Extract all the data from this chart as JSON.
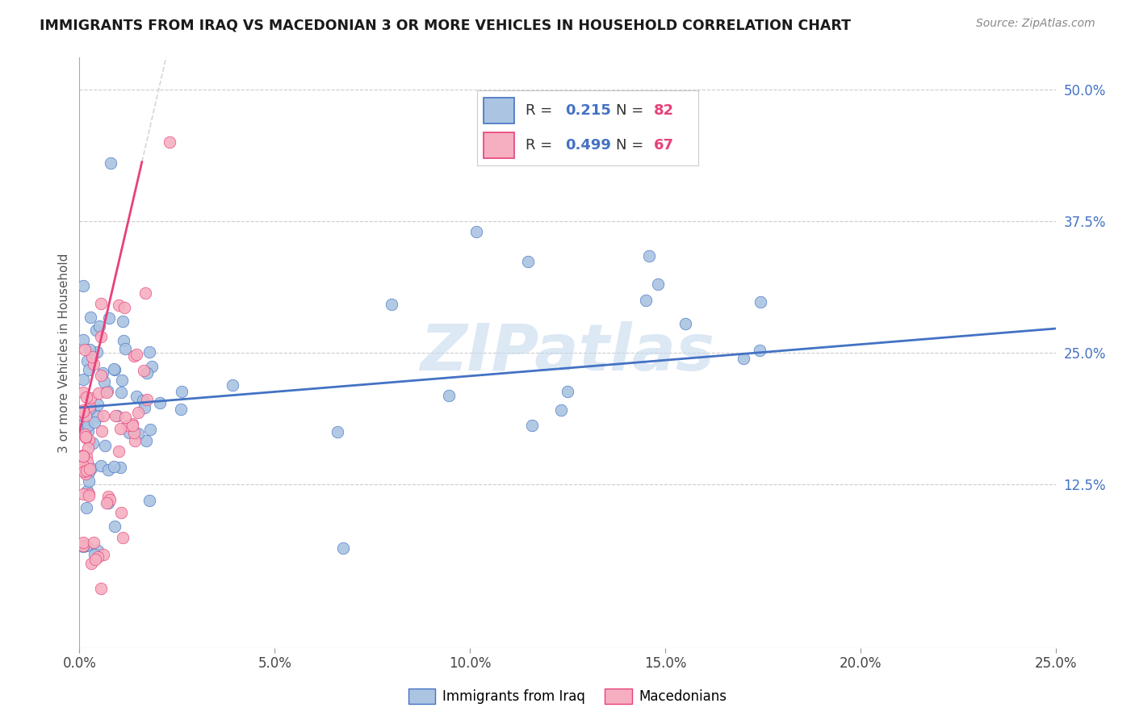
{
  "title": "IMMIGRANTS FROM IRAQ VS MACEDONIAN 3 OR MORE VEHICLES IN HOUSEHOLD CORRELATION CHART",
  "source": "Source: ZipAtlas.com",
  "xlim": [
    0.0,
    0.25
  ],
  "ylim": [
    -0.03,
    0.53
  ],
  "ylabel": "3 or more Vehicles in Household",
  "legend_label1": "Immigrants from Iraq",
  "legend_label2": "Macedonians",
  "R1": "0.215",
  "N1": "82",
  "R2": "0.499",
  "N2": "67",
  "color_blue": "#aac4e2",
  "color_pink": "#f5afc0",
  "line_blue": "#4472c4",
  "line_pink": "#e8407a",
  "watermark": "ZIPatlas",
  "watermark_color": "#c5d9ee",
  "ytick_vals": [
    0.125,
    0.25,
    0.375,
    0.5
  ],
  "ytick_labels": [
    "12.5%",
    "25.0%",
    "37.5%",
    "50.0%"
  ],
  "xtick_vals": [
    0.0,
    0.05,
    0.1,
    0.15,
    0.2,
    0.25
  ],
  "xtick_labels": [
    "0.0%",
    "5.0%",
    "10.0%",
    "15.0%",
    "20.0%",
    "25.0%"
  ]
}
